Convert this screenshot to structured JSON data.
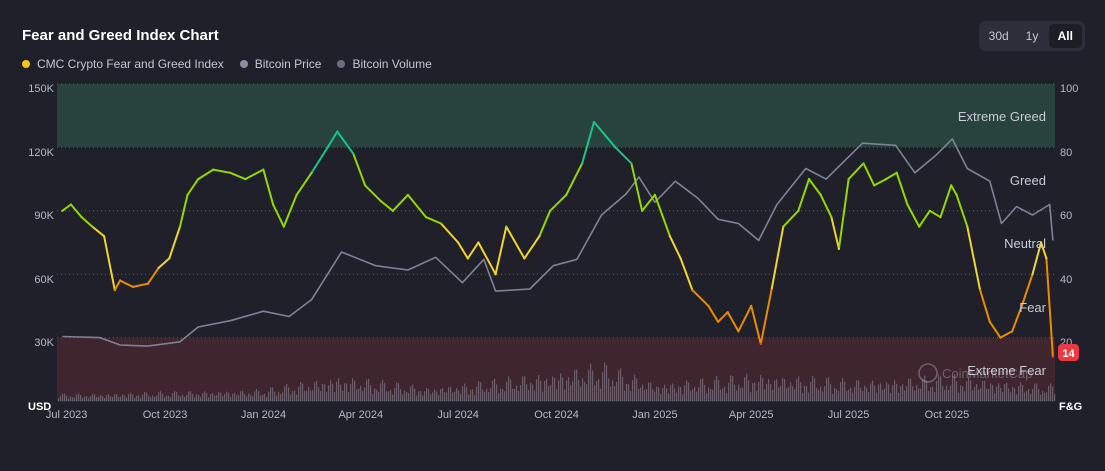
{
  "header": {
    "title": "Fear and Greed Index Chart",
    "range_buttons": [
      "30d",
      "1y",
      "All"
    ],
    "active_range": "All"
  },
  "legend": [
    {
      "label": "CMC Crypto Fear and Greed Index",
      "color": "#f5c518"
    },
    {
      "label": "Bitcoin Price",
      "color": "#8b8fa3"
    },
    {
      "label": "Bitcoin Volume",
      "color": "#6c6f80"
    }
  ],
  "watermark": "CoinMarketCap",
  "chart_data": {
    "type": "line",
    "x_ticks": [
      "Jul 2023",
      "Oct 2023",
      "Jan 2024",
      "Apr 2024",
      "Jul 2024",
      "Oct 2024",
      "Jan 2025",
      "Apr 2025",
      "Jul 2025",
      "Oct 2025"
    ],
    "left_axis": {
      "label": "USD",
      "ticks": [
        "30K",
        "60K",
        "90K",
        "120K",
        "150K"
      ],
      "min": 0,
      "max": 150000
    },
    "right_axis": {
      "label": "F&G",
      "ticks": [
        "20",
        "40",
        "60",
        "80",
        "100"
      ],
      "min": 0,
      "max": 100
    },
    "zones": [
      {
        "label": "Extreme Greed",
        "from": 80,
        "to": 100,
        "color": "#2f4f45"
      },
      {
        "label": "Greed",
        "from": 60,
        "to": 80
      },
      {
        "label": "Neutral",
        "from": 40,
        "to": 60
      },
      {
        "label": "Fear",
        "from": 20,
        "to": 40
      },
      {
        "label": "Extreme Fear",
        "from": 0,
        "to": 20,
        "color": "#4a2a33"
      }
    ],
    "current_value": "14",
    "series": [
      {
        "name": "CMC Crypto Fear and Greed Index",
        "axis": "right",
        "x": [
          "2023-06-27",
          "2023-07-05",
          "2023-07-15",
          "2023-07-25",
          "2023-08-05",
          "2023-08-15",
          "2023-08-20",
          "2023-09-01",
          "2023-09-15",
          "2023-09-25",
          "2023-10-05",
          "2023-10-15",
          "2023-10-22",
          "2023-11-01",
          "2023-11-15",
          "2023-12-01",
          "2023-12-15",
          "2024-01-01",
          "2024-01-10",
          "2024-01-20",
          "2024-02-01",
          "2024-02-15",
          "2024-03-01",
          "2024-03-10",
          "2024-03-25",
          "2024-04-05",
          "2024-04-20",
          "2024-05-01",
          "2024-05-15",
          "2024-06-01",
          "2024-06-15",
          "2024-07-01",
          "2024-07-10",
          "2024-07-20",
          "2024-08-05",
          "2024-08-15",
          "2024-09-01",
          "2024-09-15",
          "2024-09-25",
          "2024-10-10",
          "2024-10-25",
          "2024-11-05",
          "2024-11-15",
          "2024-11-25",
          "2024-12-10",
          "2024-12-20",
          "2025-01-01",
          "2025-01-15",
          "2025-01-25",
          "2025-02-05",
          "2025-02-20",
          "2025-03-01",
          "2025-03-10",
          "2025-03-20",
          "2025-04-01",
          "2025-04-10",
          "2025-04-20",
          "2025-05-01",
          "2025-05-15",
          "2025-05-25",
          "2025-06-05",
          "2025-06-15",
          "2025-06-22",
          "2025-07-01",
          "2025-07-15",
          "2025-07-25",
          "2025-08-05",
          "2025-08-15",
          "2025-08-25",
          "2025-09-05",
          "2025-09-15",
          "2025-09-25",
          "2025-10-05",
          "2025-10-10",
          "2025-10-20",
          "2025-11-01",
          "2025-11-10",
          "2025-11-20",
          "2025-12-01",
          "2025-12-10",
          "2025-12-20",
          "2025-12-28",
          "2026-01-02",
          "2026-01-08"
        ],
        "values": [
          60,
          62,
          58,
          55,
          52,
          35,
          38,
          36,
          37,
          42,
          45,
          55,
          65,
          70,
          73,
          72,
          70,
          73,
          62,
          55,
          65,
          72,
          80,
          85,
          78,
          68,
          63,
          60,
          65,
          58,
          56,
          50,
          45,
          50,
          40,
          55,
          45,
          52,
          60,
          65,
          75,
          88,
          84,
          80,
          75,
          60,
          65,
          52,
          45,
          35,
          30,
          25,
          28,
          22,
          30,
          18,
          35,
          55,
          60,
          70,
          65,
          58,
          48,
          70,
          75,
          68,
          70,
          72,
          62,
          55,
          60,
          58,
          68,
          65,
          55,
          35,
          25,
          20,
          22,
          30,
          40,
          50,
          45,
          14
        ],
        "color_scale": {
          "extreme_fear": "#ea3943",
          "fear": "#ea8c00",
          "neutral": "#f3d42f",
          "greed": "#93d900",
          "extreme_greed": "#16c784"
        }
      },
      {
        "name": "Bitcoin Price",
        "axis": "left",
        "x": [
          "2023-06-27",
          "2023-08-01",
          "2023-08-20",
          "2023-09-15",
          "2023-10-15",
          "2023-11-01",
          "2023-12-01",
          "2024-01-01",
          "2024-01-25",
          "2024-02-15",
          "2024-03-01",
          "2024-03-14",
          "2024-04-15",
          "2024-05-15",
          "2024-06-10",
          "2024-07-05",
          "2024-07-25",
          "2024-08-05",
          "2024-09-06",
          "2024-09-28",
          "2024-10-20",
          "2024-11-12",
          "2024-12-05",
          "2024-12-17",
          "2025-01-01",
          "2025-01-20",
          "2025-02-10",
          "2025-03-01",
          "2025-03-20",
          "2025-04-08",
          "2025-04-25",
          "2025-05-22",
          "2025-06-10",
          "2025-07-14",
          "2025-08-14",
          "2025-09-01",
          "2025-09-20",
          "2025-10-06",
          "2025-10-20",
          "2025-11-10",
          "2025-11-21",
          "2025-12-05",
          "2025-12-20",
          "2026-01-05",
          "2026-01-08"
        ],
        "values": [
          30500,
          30000,
          26500,
          26000,
          28000,
          35000,
          38000,
          42500,
          40000,
          48000,
          60000,
          70500,
          64000,
          62000,
          68000,
          56000,
          67000,
          52000,
          53000,
          64000,
          67000,
          88000,
          98000,
          106000,
          94000,
          104000,
          96000,
          86000,
          84000,
          76000,
          93000,
          110000,
          105000,
          122000,
          121000,
          108000,
          116000,
          124000,
          110000,
          104000,
          84000,
          92000,
          88000,
          93000,
          76000
        ]
      },
      {
        "name": "Bitcoin Volume",
        "axis": "left",
        "x": [
          "2023-07-01",
          "2023-10-01",
          "2024-01-01",
          "2024-03-10",
          "2024-06-01",
          "2024-08-05",
          "2024-11-12",
          "2025-01-01",
          "2025-03-01",
          "2025-04-08",
          "2025-07-01",
          "2025-10-10",
          "2026-01-01"
        ],
        "values": [
          3000,
          4000,
          5000,
          11000,
          6000,
          9000,
          16000,
          8000,
          10000,
          12000,
          9000,
          11000,
          7000
        ]
      }
    ]
  }
}
